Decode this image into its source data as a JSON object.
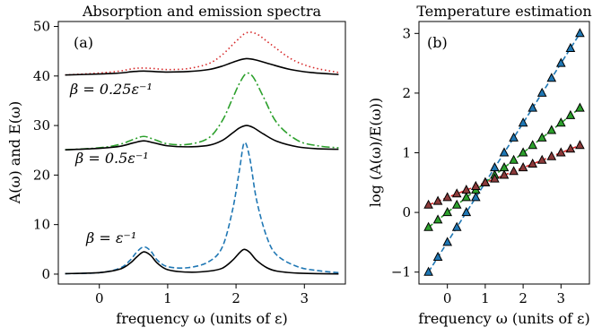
{
  "chart_data": [
    {
      "type": "line",
      "title": "Absorption and emission spectra",
      "panel_label": "(a)",
      "xlabel": "frequency ω (units of ε)",
      "ylabel": "A(ω) and E(ω)",
      "xlim": [
        -0.6,
        3.6
      ],
      "ylim": [
        -2,
        51
      ],
      "xticks": [
        "0",
        "1",
        "2",
        "3"
      ],
      "yticks": [
        "0",
        "10",
        "20",
        "30",
        "40",
        "50"
      ],
      "grid": false,
      "annotations": [
        "β = 0.25ε⁻¹",
        "β = 0.5ε⁻¹",
        "β = ε⁻¹"
      ],
      "groups": [
        {
          "annotation": "β = 0.25ε⁻¹",
          "offset": 40,
          "x": [
            -0.5,
            0.0,
            0.3,
            0.5,
            0.65,
            0.8,
            1.0,
            1.3,
            1.6,
            1.8,
            2.0,
            2.15,
            2.3,
            2.5,
            2.8,
            3.1,
            3.5
          ],
          "solid": [
            40.2,
            40.4,
            40.6,
            40.9,
            41.0,
            40.9,
            40.8,
            40.9,
            41.3,
            42.0,
            43.0,
            43.5,
            43.2,
            42.4,
            41.3,
            40.7,
            40.3
          ],
          "emission": [
            40.2,
            40.6,
            41.0,
            41.5,
            41.6,
            41.5,
            41.3,
            41.5,
            42.5,
            44.3,
            47.0,
            48.7,
            48.5,
            46.5,
            43.5,
            41.8,
            40.7
          ],
          "emission_color": "#d62728",
          "emission_style": "dotted"
        },
        {
          "annotation": "β = 0.5ε⁻¹",
          "offset": 25,
          "x": [
            -0.5,
            0.0,
            0.3,
            0.5,
            0.65,
            0.8,
            1.0,
            1.3,
            1.6,
            1.8,
            1.95,
            2.05,
            2.15,
            2.25,
            2.4,
            2.6,
            2.9,
            3.2,
            3.5
          ],
          "solid": [
            25.1,
            25.4,
            25.8,
            26.5,
            26.9,
            26.5,
            25.9,
            25.7,
            26.0,
            27.0,
            28.5,
            29.5,
            30.0,
            29.6,
            28.3,
            26.8,
            25.7,
            25.3,
            25.2
          ],
          "emission": [
            25.1,
            25.5,
            26.2,
            27.2,
            27.8,
            27.2,
            26.3,
            26.2,
            27.5,
            31.0,
            35.5,
            38.5,
            40.5,
            39.8,
            35.8,
            30.5,
            27.0,
            25.9,
            25.5
          ],
          "emission_color": "#2ca02c",
          "emission_style": "dashdot"
        },
        {
          "annotation": "β = ε⁻¹",
          "offset": 0,
          "x": [
            -0.5,
            0.0,
            0.3,
            0.45,
            0.55,
            0.65,
            0.75,
            0.85,
            1.0,
            1.3,
            1.6,
            1.8,
            1.95,
            2.05,
            2.12,
            2.2,
            2.3,
            2.45,
            2.6,
            2.9,
            3.2,
            3.5
          ],
          "solid": [
            0.1,
            0.3,
            1.0,
            2.2,
            3.5,
            4.5,
            3.8,
            2.2,
            0.9,
            0.4,
            0.6,
            1.2,
            2.8,
            4.3,
            5.0,
            4.4,
            2.8,
            1.3,
            0.6,
            0.2,
            0.1,
            0.05
          ],
          "emission": [
            0.1,
            0.3,
            1.2,
            2.8,
            4.5,
            5.5,
            4.7,
            2.8,
            1.5,
            1.3,
            2.5,
            5.5,
            13.0,
            21.0,
            26.5,
            23.5,
            15.0,
            7.5,
            3.8,
            1.5,
            0.7,
            0.3
          ],
          "emission_color": "#1f77b4",
          "emission_style": "dashed"
        }
      ]
    },
    {
      "type": "scatter",
      "title": "Temperature estimation",
      "panel_label": "(b)",
      "xlabel": "frequency ω (units of ε)",
      "ylabel": "log (A(ω)/E(ω))",
      "xlim": [
        -0.75,
        3.75
      ],
      "ylim": [
        -1.2,
        3.2
      ],
      "xticks": [
        "0",
        "1",
        "2",
        "3"
      ],
      "yticks": [
        "−1",
        "0",
        "1",
        "2",
        "3"
      ],
      "grid": false,
      "series": [
        {
          "slope": 1.0,
          "color": "#1f77b4",
          "marker_color": "#1f77b4"
        },
        {
          "slope": 0.5,
          "color": "#2ca02c",
          "marker_color": "#2ca02c"
        },
        {
          "slope": 0.25,
          "color": "#d62728",
          "marker_color": "#8c3a3a"
        }
      ],
      "x": [
        -0.5,
        -0.25,
        0.0,
        0.25,
        0.5,
        0.75,
        1.0,
        1.25,
        1.5,
        1.75,
        2.0,
        2.25,
        2.5,
        2.75,
        3.0,
        3.25,
        3.5
      ]
    }
  ]
}
